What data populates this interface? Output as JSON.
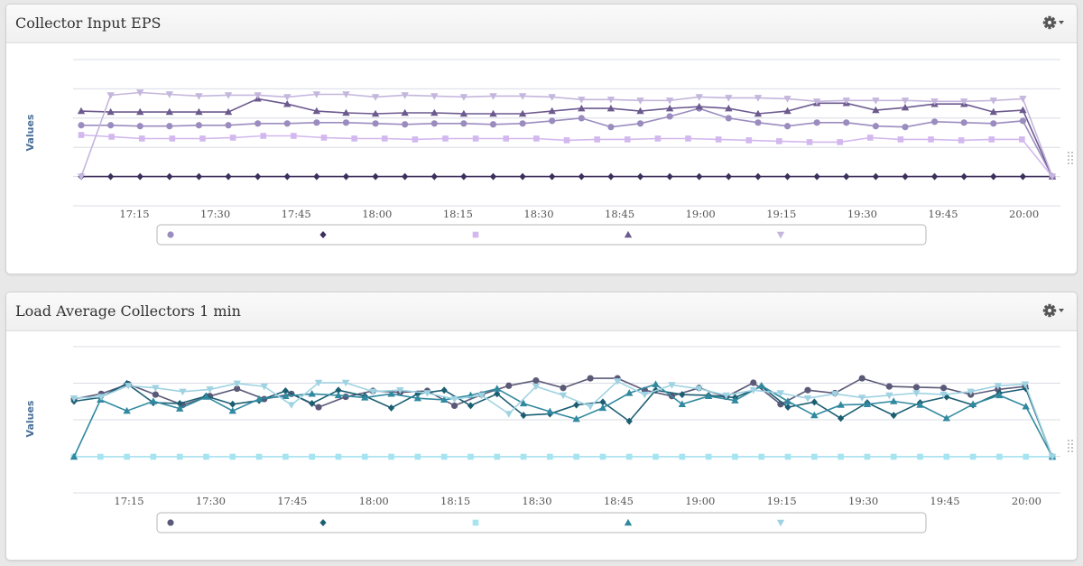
{
  "panels": [
    {
      "title": "Collector Input EPS",
      "colors": [
        "#9b8cbf",
        "#3d2f5c",
        "#d2b8ee",
        "#6c5a8f",
        "#c4b6dc"
      ],
      "chart_data": {
        "type": "line",
        "ylabel": "Values",
        "x_ticks": [
          "17:15",
          "17:30",
          "17:45",
          "18:00",
          "18:15",
          "18:30",
          "18:45",
          "19:00",
          "19:15",
          "19:30",
          "19:45",
          "20:00"
        ],
        "legend": {
          "placement": "bottom",
          "entries": [
            "",
            "",
            "",
            "",
            ""
          ]
        },
        "series": [
          {
            "marker": "circle",
            "values": [
              0.58,
              0.58,
              0.57,
              0.57,
              0.58,
              0.58,
              0.6,
              0.6,
              0.61,
              0.61,
              0.6,
              0.59,
              0.6,
              0.6,
              0.59,
              0.6,
              0.63,
              0.66,
              0.56,
              0.6,
              0.68,
              0.77,
              0.66,
              0.61,
              0.57,
              0.61,
              0.61,
              0.57,
              0.56,
              0.62,
              0.61,
              0.6,
              0.63,
              0.0
            ]
          },
          {
            "marker": "diamond",
            "values": [
              0.0,
              0.0,
              0.0,
              0.0,
              0.0,
              0.0,
              0.0,
              0.0,
              0.0,
              0.0,
              0.0,
              0.0,
              0.0,
              0.0,
              0.0,
              0.0,
              0.0,
              0.0,
              0.0,
              0.0,
              0.0,
              0.0,
              0.0,
              0.0,
              0.0,
              0.0,
              0.0,
              0.0,
              0.0,
              0.0,
              0.0,
              0.0,
              0.0,
              0.0
            ]
          },
          {
            "marker": "square",
            "values": [
              0.47,
              0.45,
              0.43,
              0.43,
              0.43,
              0.44,
              0.46,
              0.46,
              0.44,
              0.43,
              0.43,
              0.42,
              0.43,
              0.43,
              0.43,
              0.43,
              0.41,
              0.42,
              0.42,
              0.43,
              0.43,
              0.42,
              0.41,
              0.4,
              0.39,
              0.39,
              0.44,
              0.42,
              0.42,
              0.41,
              0.42,
              0.42,
              0.0
            ]
          },
          {
            "marker": "triangle-up",
            "values": [
              0.74,
              0.73,
              0.73,
              0.73,
              0.73,
              0.73,
              0.88,
              0.82,
              0.74,
              0.72,
              0.71,
              0.72,
              0.72,
              0.71,
              0.71,
              0.71,
              0.74,
              0.77,
              0.77,
              0.74,
              0.77,
              0.79,
              0.77,
              0.71,
              0.74,
              0.83,
              0.83,
              0.75,
              0.78,
              0.82,
              0.82,
              0.73,
              0.75,
              0.0
            ]
          },
          {
            "marker": "triangle-down",
            "values": [
              0.0,
              0.92,
              0.95,
              0.93,
              0.91,
              0.92,
              0.92,
              0.9,
              0.93,
              0.93,
              0.9,
              0.92,
              0.91,
              0.9,
              0.91,
              0.91,
              0.9,
              0.87,
              0.87,
              0.86,
              0.86,
              0.9,
              0.89,
              0.89,
              0.88,
              0.85,
              0.86,
              0.86,
              0.86,
              0.85,
              0.85,
              0.86,
              0.88,
              0.0
            ]
          }
        ]
      }
    },
    {
      "title": "Load Average Collectors 1 min",
      "colors": [
        "#5a5a78",
        "#1b5e72",
        "#a5e4f0",
        "#3189a0",
        "#9fd2e2"
      ],
      "chart_data": {
        "type": "line",
        "ylabel": "Values",
        "x_ticks": [
          "17:15",
          "17:30",
          "17:45",
          "18:00",
          "18:15",
          "18:30",
          "18:45",
          "19:00",
          "19:15",
          "19:30",
          "19:45",
          "20:00"
        ],
        "legend": {
          "placement": "bottom",
          "entries": [
            "",
            "",
            "",
            "",
            ""
          ]
        },
        "series": [
          {
            "marker": "circle",
            "values": [
              0.78,
              0.85,
              0.98,
              0.84,
              0.7,
              0.82,
              0.92,
              0.78,
              0.85,
              0.67,
              0.81,
              0.89,
              0.87,
              0.89,
              0.69,
              0.84,
              0.96,
              1.03,
              0.93,
              1.06,
              1.06,
              0.9,
              0.82,
              0.93,
              0.81,
              1.0,
              0.71,
              0.9,
              0.86,
              1.06,
              0.95,
              0.94,
              0.93,
              0.84,
              0.91,
              0.95,
              0.0
            ]
          },
          {
            "marker": "diamond",
            "values": [
              0.75,
              0.8,
              0.99,
              0.73,
              0.72,
              0.82,
              0.71,
              0.76,
              0.89,
              0.72,
              0.9,
              0.82,
              0.66,
              0.85,
              0.9,
              0.69,
              0.85,
              0.56,
              0.58,
              0.7,
              0.74,
              0.48,
              0.9,
              0.84,
              0.83,
              0.8,
              0.95,
              0.67,
              0.74,
              0.52,
              0.73,
              0.56,
              0.73,
              0.81,
              0.7,
              0.86,
              0.92,
              0.0
            ]
          },
          {
            "marker": "square",
            "values": [
              0.0,
              0.0,
              0.0,
              0.0,
              0.0,
              0.0,
              0.0,
              0.0,
              0.0,
              0.0,
              0.0,
              0.0,
              0.0,
              0.0,
              0.0,
              0.0,
              0.0,
              0.0,
              0.0,
              0.0,
              0.0,
              0.0,
              0.0,
              0.0,
              0.0,
              0.0,
              0.0,
              0.0,
              0.0,
              0.0,
              0.0,
              0.0,
              0.0,
              0.0,
              0.0,
              0.0,
              0.0,
              0.0
            ]
          },
          {
            "marker": "triangle-up",
            "values": [
              0.0,
              0.77,
              0.62,
              0.75,
              0.65,
              0.81,
              0.62,
              0.78,
              0.82,
              0.85,
              0.83,
              0.8,
              0.85,
              0.79,
              0.77,
              0.83,
              0.92,
              0.72,
              0.61,
              0.51,
              0.66,
              0.86,
              0.98,
              0.71,
              0.82,
              0.76,
              0.96,
              0.75,
              0.56,
              0.7,
              0.71,
              0.75,
              0.7,
              0.52,
              0.71,
              0.83,
              0.68,
              0.0
            ]
          },
          {
            "marker": "triangle-down",
            "values": [
              0.79,
              0.81,
              0.96,
              0.93,
              0.88,
              0.91,
              0.99,
              0.95,
              0.7,
              1.0,
              1.0,
              0.88,
              0.9,
              0.86,
              0.78,
              0.83,
              0.58,
              0.95,
              0.83,
              0.68,
              1.02,
              0.84,
              0.97,
              0.92,
              0.83,
              0.9,
              0.86,
              0.79,
              0.85,
              0.8,
              0.83,
              0.86,
              0.84,
              0.88,
              0.96,
              0.98,
              0.0
            ]
          }
        ]
      }
    }
  ]
}
